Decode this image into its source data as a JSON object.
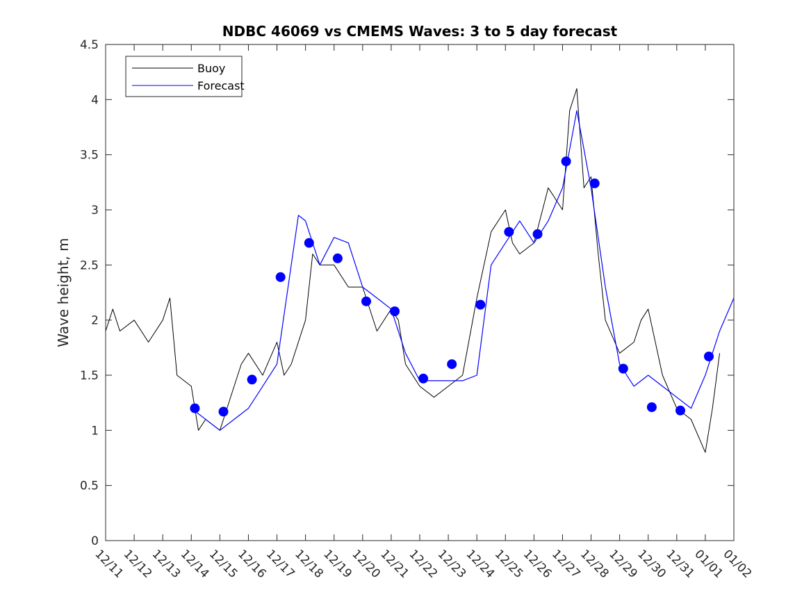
{
  "chart_data": {
    "type": "line",
    "title": "NDBC 46069 vs CMEMS Waves: 3 to 5 day forecast",
    "xlabel": "",
    "ylabel": "Wave height, m",
    "xlim": [
      "12/11",
      "01/02"
    ],
    "ylim": [
      0,
      4.5
    ],
    "x_ticks": [
      "12/11",
      "12/12",
      "12/13",
      "12/14",
      "12/15",
      "12/16",
      "12/17",
      "12/18",
      "12/19",
      "12/20",
      "12/21",
      "12/22",
      "12/23",
      "12/24",
      "12/25",
      "12/26",
      "12/27",
      "12/28",
      "12/29",
      "12/30",
      "12/31",
      "01/01",
      "01/02"
    ],
    "y_ticks": [
      "0",
      "0.5",
      "1",
      "1.5",
      "2",
      "2.5",
      "3",
      "3.5",
      "4",
      "4.5"
    ],
    "grid": false,
    "legend": {
      "placement": "top-left",
      "entries": [
        "Buoy",
        "Forecast"
      ]
    },
    "colors": {
      "buoy": "#000000",
      "forecast": "#0000ff"
    },
    "series": [
      {
        "name": "Buoy",
        "x": [
          "12/11 00:00",
          "12/11 06:00",
          "12/11 12:00",
          "12/12 00:00",
          "12/12 12:00",
          "12/13 00:00",
          "12/13 06:00",
          "12/13 12:00",
          "12/14 00:00",
          "12/14 06:00",
          "12/14 12:00",
          "12/15 00:00",
          "12/15 12:00",
          "12/15 18:00",
          "12/16 00:00",
          "12/16 12:00",
          "12/17 00:00",
          "12/17 06:00",
          "12/17 12:00",
          "12/18 00:00",
          "12/18 06:00",
          "12/18 12:00",
          "12/19 00:00",
          "12/19 12:00",
          "12/20 00:00",
          "12/20 12:00",
          "12/21 00:00",
          "12/21 06:00",
          "12/21 12:00",
          "12/22 00:00",
          "12/22 12:00",
          "12/23 00:00",
          "12/23 12:00",
          "12/24 00:00",
          "12/24 12:00",
          "12/25 00:00",
          "12/25 06:00",
          "12/25 12:00",
          "12/26 00:00",
          "12/26 12:00",
          "12/27 00:00",
          "12/27 06:00",
          "12/27 12:00",
          "12/27 18:00",
          "12/28 00:00",
          "12/28 06:00",
          "12/28 12:00",
          "12/29 00:00",
          "12/29 12:00",
          "12/29 18:00",
          "12/30 00:00",
          "12/30 12:00",
          "12/31 00:00",
          "12/31 12:00",
          "01/01 00:00",
          "01/01 06:00",
          "01/01 12:00"
        ],
        "y": [
          1.9,
          2.1,
          1.9,
          2.0,
          1.8,
          2.0,
          2.2,
          1.5,
          1.4,
          1.0,
          1.1,
          1.0,
          1.4,
          1.6,
          1.7,
          1.5,
          1.8,
          1.5,
          1.6,
          2.0,
          2.6,
          2.5,
          2.5,
          2.3,
          2.3,
          1.9,
          2.1,
          2.0,
          1.6,
          1.4,
          1.3,
          1.4,
          1.5,
          2.2,
          2.8,
          3.0,
          2.7,
          2.6,
          2.7,
          3.2,
          3.0,
          3.9,
          4.1,
          3.2,
          3.3,
          2.6,
          2.0,
          1.7,
          1.8,
          2.0,
          2.1,
          1.5,
          1.2,
          1.1,
          0.8,
          1.2,
          1.7
        ]
      },
      {
        "name": "Forecast",
        "x": [
          "12/14 00:00",
          "12/15 00:00",
          "12/15 12:00",
          "12/16 00:00",
          "12/16 12:00",
          "12/17 00:00",
          "12/17 12:00",
          "12/17 18:00",
          "12/18 00:00",
          "12/18 12:00",
          "12/19 00:00",
          "12/19 12:00",
          "12/20 00:00",
          "12/20 12:00",
          "12/21 00:00",
          "12/21 12:00",
          "12/22 00:00",
          "12/22 12:00",
          "12/23 00:00",
          "12/23 12:00",
          "12/24 00:00",
          "12/24 12:00",
          "12/25 00:00",
          "12/25 12:00",
          "12/26 00:00",
          "12/26 12:00",
          "12/27 00:00",
          "12/27 12:00",
          "12/28 00:00",
          "12/28 12:00",
          "12/29 00:00",
          "12/29 12:00",
          "12/30 00:00",
          "12/30 12:00",
          "12/31 00:00",
          "12/31 12:00",
          "01/01 00:00",
          "01/01 12:00",
          "01/02 00:00"
        ],
        "y": [
          1.2,
          1.0,
          1.1,
          1.2,
          1.4,
          1.6,
          2.5,
          2.95,
          2.9,
          2.5,
          2.75,
          2.7,
          2.3,
          2.2,
          2.1,
          1.7,
          1.45,
          1.45,
          1.45,
          1.45,
          1.5,
          2.5,
          2.7,
          2.9,
          2.7,
          2.9,
          3.2,
          3.9,
          3.2,
          2.3,
          1.6,
          1.4,
          1.5,
          1.4,
          1.3,
          1.2,
          1.5,
          1.9,
          2.2
        ]
      },
      {
        "name": "Forecast (forecast-time markers)",
        "x": [
          "12/14 03:00",
          "12/15 03:00",
          "12/16 03:00",
          "12/17 03:00",
          "12/18 03:00",
          "12/19 03:00",
          "12/20 03:00",
          "12/21 03:00",
          "12/22 03:00",
          "12/23 03:00",
          "12/24 03:00",
          "12/25 03:00",
          "12/26 03:00",
          "12/27 03:00",
          "12/28 03:00",
          "12/29 03:00",
          "12/30 03:00",
          "12/31 03:00",
          "01/01 03:00"
        ],
        "y": [
          1.2,
          1.17,
          1.46,
          2.39,
          2.7,
          2.56,
          2.17,
          2.08,
          1.47,
          1.6,
          2.14,
          2.8,
          2.78,
          3.44,
          3.24,
          1.56,
          1.21,
          1.18,
          1.67
        ]
      }
    ]
  }
}
